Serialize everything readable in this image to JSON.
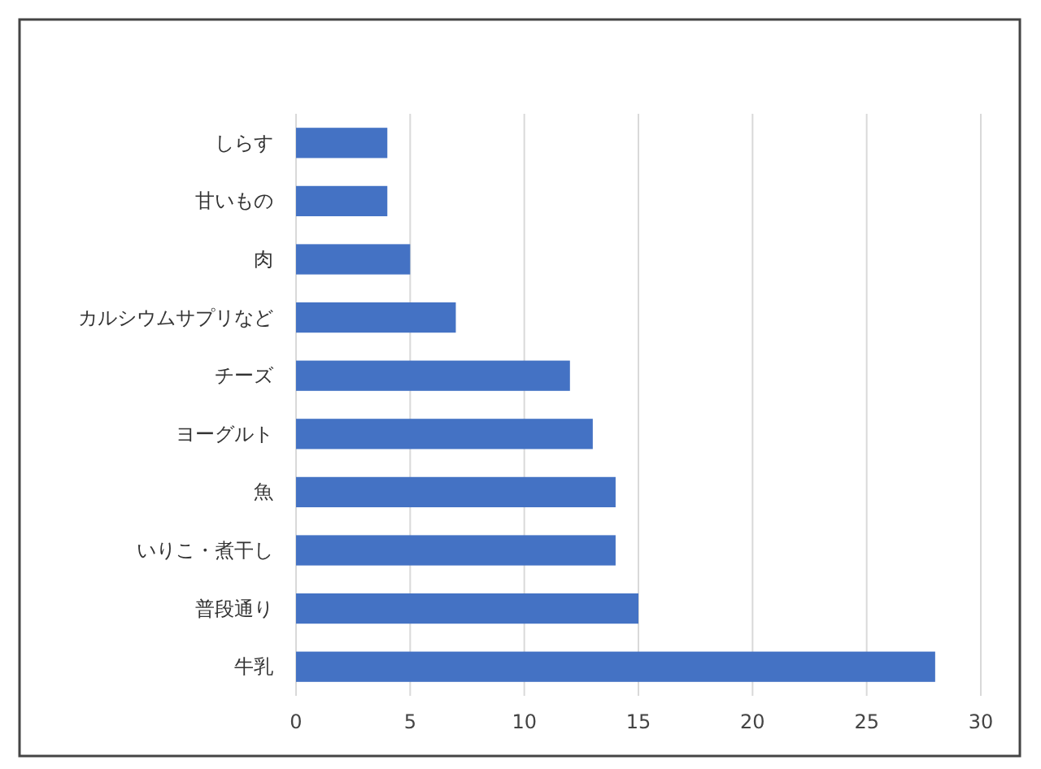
{
  "chart_data": {
    "type": "bar",
    "orientation": "horizontal",
    "categories": [
      "しらす",
      "甘いもの",
      "肉",
      "カルシウムサプリなど",
      "チーズ",
      "ヨーグルト",
      "魚",
      "いりこ・煮干し",
      "普段通り",
      "牛乳"
    ],
    "values": [
      4,
      4,
      5,
      7,
      12,
      13,
      14,
      14,
      15,
      28
    ],
    "color": "#4472c4",
    "xlim": [
      0,
      30
    ],
    "xticks": [
      0,
      5,
      10,
      15,
      20,
      25,
      30
    ],
    "grid": "x"
  }
}
